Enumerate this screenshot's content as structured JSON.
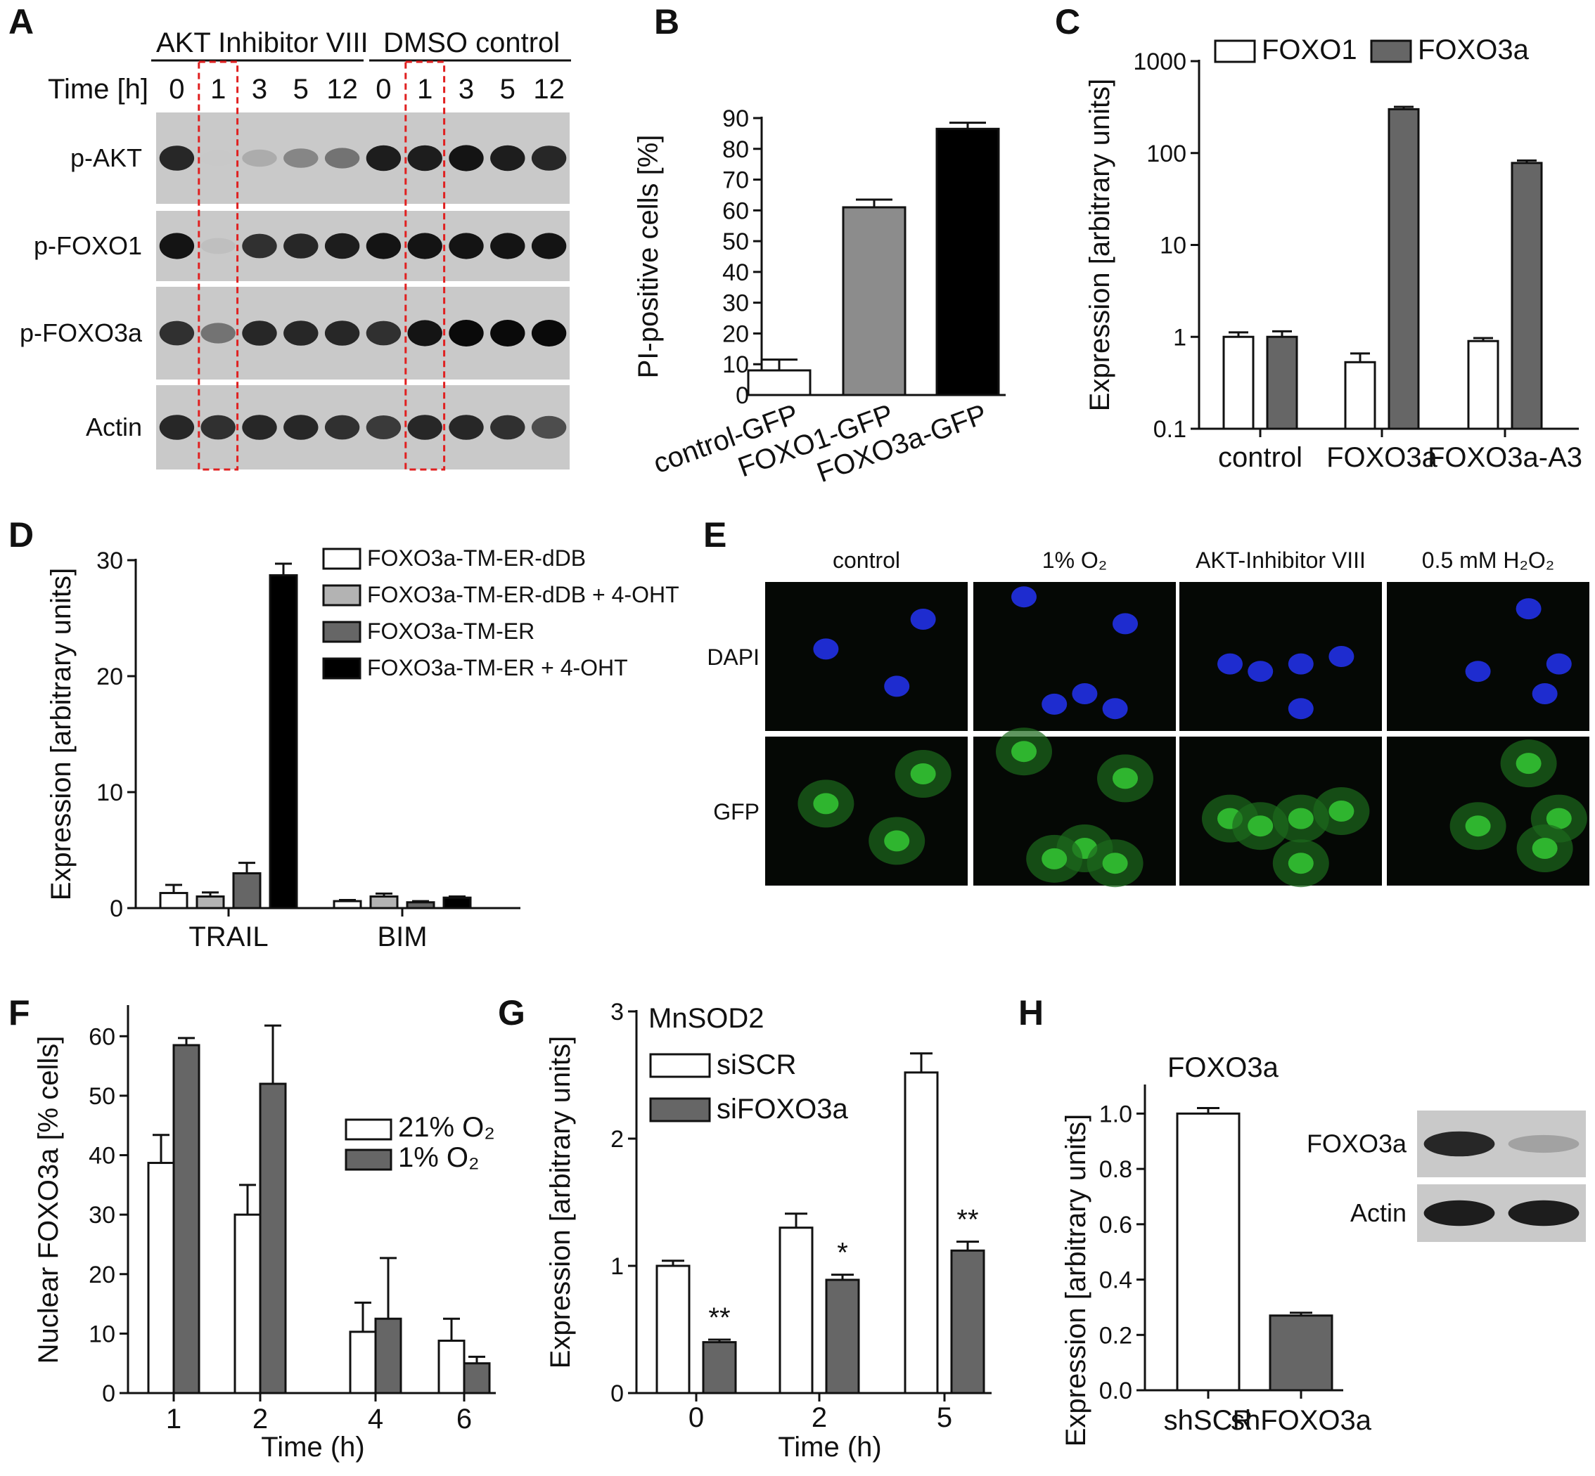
{
  "panels": {
    "A": {
      "label": "A",
      "group1": "AKT Inhibitor VIII",
      "group2": "DMSO control",
      "time_label": "Time [h]",
      "times": [
        "0",
        "1",
        "3",
        "5",
        "12",
        "0",
        "1",
        "3",
        "5",
        "12"
      ],
      "rows": [
        {
          "name": "p-AKT",
          "intensity": [
            0.85,
            0.0,
            0.15,
            0.35,
            0.45,
            0.9,
            0.9,
            0.95,
            0.9,
            0.85
          ]
        },
        {
          "name": "p-FOXO1",
          "intensity": [
            0.95,
            0.05,
            0.8,
            0.85,
            0.9,
            0.95,
            0.95,
            0.95,
            0.95,
            0.95
          ]
        },
        {
          "name": "p-FOXO3a",
          "intensity": [
            0.8,
            0.45,
            0.85,
            0.85,
            0.85,
            0.8,
            0.95,
            1.0,
            1.0,
            1.0
          ]
        },
        {
          "name": "Actin",
          "intensity": [
            0.85,
            0.8,
            0.85,
            0.85,
            0.8,
            0.75,
            0.85,
            0.85,
            0.8,
            0.65
          ]
        }
      ]
    },
    "E": {
      "label": "E",
      "conditions": [
        "control",
        "1% O₂",
        "AKT-Inhibitor VIII",
        "0.5 mM H₂O₂"
      ],
      "rows": [
        "DAPI",
        "GFP"
      ],
      "colors": {
        "dapi": "#1e2ccf",
        "gfp": "#2fb52f"
      }
    },
    "H_blot": {
      "rows": [
        {
          "name": "FOXO3a",
          "intensity": [
            0.85,
            0.2
          ]
        },
        {
          "name": "Actin",
          "intensity": [
            0.9,
            0.9
          ]
        }
      ]
    }
  },
  "chart_data": [
    {
      "id": "B",
      "label": "B",
      "type": "bar",
      "categories": [
        "control-GFP",
        "FOXO1-GFP",
        "FOXO3a-GFP"
      ],
      "values": [
        8,
        61,
        86.5
      ],
      "errors": [
        3.5,
        2.5,
        2
      ],
      "colors": [
        "#ffffff",
        "#8c8c8c",
        "#000000"
      ],
      "ylabel": "PI-positive cells [%]",
      "ylim": [
        0,
        90
      ],
      "yticks": [
        "0",
        "10",
        "20",
        "30",
        "40",
        "50",
        "60",
        "70",
        "80",
        "90"
      ]
    },
    {
      "id": "C",
      "label": "C",
      "type": "bar",
      "yscale": "log",
      "categories": [
        "control",
        "FOXO3a",
        "FOXO3a-A3"
      ],
      "series": [
        {
          "name": "FOXO1",
          "color": "#ffffff",
          "values": [
            1.0,
            0.53,
            0.9
          ],
          "errors": [
            0.12,
            0.13,
            0.07
          ]
        },
        {
          "name": "FOXO3a",
          "color": "#666666",
          "values": [
            1.0,
            300,
            78
          ],
          "errors": [
            0.15,
            18,
            5
          ]
        }
      ],
      "ylabel": "Expression [arbitrary units]",
      "ylim": [
        0.1,
        1000
      ],
      "yticks": [
        "0.1",
        "1",
        "10",
        "100",
        "1000"
      ],
      "legend": "top"
    },
    {
      "id": "D",
      "label": "D",
      "type": "bar",
      "categories": [
        "TRAIL",
        "BIM"
      ],
      "series": [
        {
          "name": "FOXO3a-TM-ER-dDB",
          "color": "#ffffff",
          "values": [
            1.3,
            0.6
          ],
          "errors": [
            0.7,
            0.1
          ]
        },
        {
          "name": "FOXO3a-TM-ER-dDB + 4-OHT",
          "color": "#b3b3b3",
          "values": [
            1.0,
            1.0
          ],
          "errors": [
            0.35,
            0.25
          ]
        },
        {
          "name": "FOXO3a-TM-ER",
          "color": "#666666",
          "values": [
            3.0,
            0.5
          ],
          "errors": [
            0.9,
            0.1
          ]
        },
        {
          "name": "FOXO3a-TM-ER + 4-OHT",
          "color": "#000000",
          "values": [
            28.7,
            0.9
          ],
          "errors": [
            1.0,
            0.1
          ]
        }
      ],
      "ylabel": "Expression [arbitrary units]",
      "ylim": [
        0,
        30
      ],
      "yticks": [
        "0",
        "10",
        "20",
        "30"
      ],
      "legend": "top-right"
    },
    {
      "id": "F",
      "label": "F",
      "type": "bar",
      "categories": [
        "1",
        "2",
        "4",
        "6"
      ],
      "series": [
        {
          "name": "21% O₂",
          "color": "#ffffff",
          "values": [
            38.7,
            30.0,
            10.3,
            8.8
          ],
          "errors": [
            4.7,
            5.0,
            4.9,
            3.7
          ]
        },
        {
          "name": "1% O₂",
          "color": "#666666",
          "values": [
            58.5,
            52.0,
            12.5,
            5.0
          ],
          "errors": [
            1.2,
            9.8,
            10.2,
            1.1
          ]
        }
      ],
      "xlabel": "Time (h)",
      "ylabel": "Nuclear FOXO3a [% cells]",
      "ylim": [
        0,
        65
      ],
      "yticks": [
        "0",
        "10",
        "20",
        "30",
        "40",
        "50",
        "60"
      ],
      "legend": "right"
    },
    {
      "id": "G",
      "label": "G",
      "type": "bar",
      "title": "MnSOD2",
      "categories": [
        "0",
        "2",
        "5"
      ],
      "series": [
        {
          "name": "siSCR",
          "color": "#ffffff",
          "values": [
            1.0,
            1.3,
            2.52
          ],
          "errors": [
            0.04,
            0.11,
            0.15
          ]
        },
        {
          "name": "siFOXO3a",
          "color": "#666666",
          "values": [
            0.4,
            0.89,
            1.12
          ],
          "errors": [
            0.02,
            0.04,
            0.07
          ]
        }
      ],
      "annotations": [
        "**",
        "*",
        "**"
      ],
      "xlabel": "Time (h)",
      "ylabel": "Expression [arbitrary units]",
      "ylim": [
        0,
        3
      ],
      "yticks": [
        "0",
        "1",
        "2",
        "3"
      ],
      "legend": "top-left"
    },
    {
      "id": "H",
      "label": "H",
      "type": "bar",
      "title": "FOXO3a",
      "categories": [
        "shSCR",
        "shFOXO3a"
      ],
      "values": [
        1.0,
        0.27
      ],
      "errors": [
        0.02,
        0.01
      ],
      "colors": [
        "#ffffff",
        "#666666"
      ],
      "ylabel": "Expression [arbitrary units]",
      "ylim": [
        0,
        1.1
      ],
      "yticks": [
        "0.0",
        "0.2",
        "0.4",
        "0.6",
        "0.8",
        "1.0"
      ]
    }
  ]
}
